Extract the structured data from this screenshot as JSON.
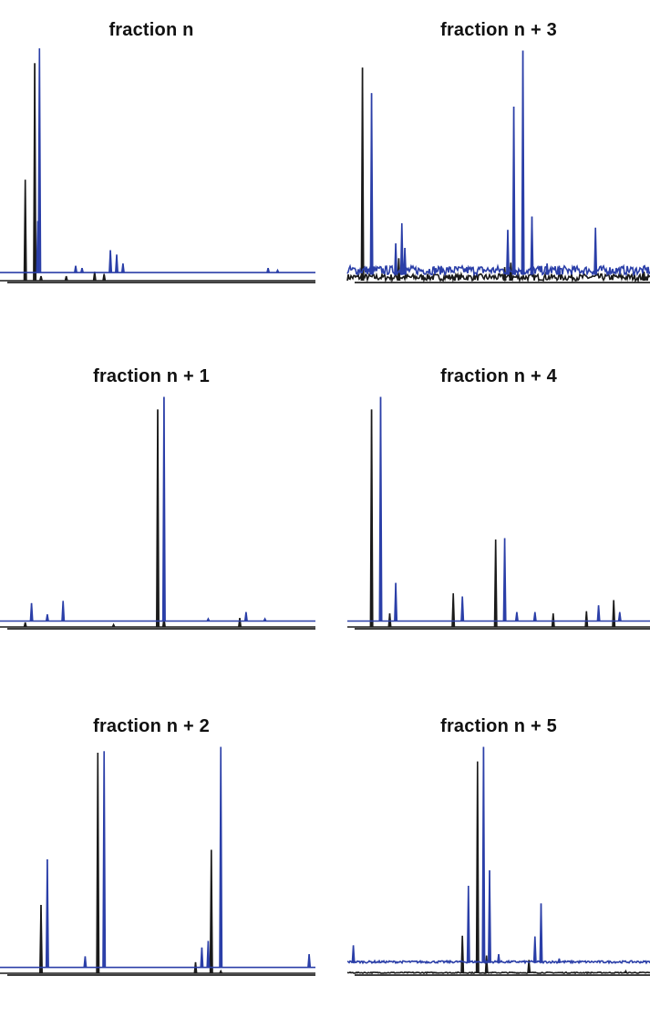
{
  "chart_data": [
    {
      "type": "line",
      "title": "fraction n",
      "series": [
        {
          "color": "#1a1a1a",
          "baseline": 0,
          "peaks": [
            [
              0.08,
              0.45
            ],
            [
              0.11,
              0.97
            ],
            [
              0.13,
              0.02
            ],
            [
              0.21,
              0.02
            ],
            [
              0.3,
              0.04
            ],
            [
              0.33,
              0.03
            ]
          ]
        },
        {
          "color": "#2b3fa8",
          "baseline": 0.02,
          "peaks": [
            [
              0.125,
              1.0
            ],
            [
              0.12,
              0.23
            ],
            [
              0.24,
              0.03
            ],
            [
              0.26,
              0.02
            ],
            [
              0.35,
              0.1
            ],
            [
              0.37,
              0.08
            ],
            [
              0.39,
              0.04
            ],
            [
              0.85,
              0.02
            ],
            [
              0.88,
              0.01
            ]
          ]
        }
      ]
    },
    {
      "type": "line",
      "title": "fraction n + 3",
      "series": [
        {
          "color": "#1a1a1a",
          "baseline": 0,
          "noise": 0.03,
          "peaks": [
            [
              0.05,
              0.95
            ],
            [
              0.17,
              0.1
            ],
            [
              0.52,
              0.06
            ],
            [
              0.54,
              0.08
            ],
            [
              0.98,
              0.04
            ]
          ]
        },
        {
          "color": "#2b3fa8",
          "baseline": 0.01,
          "noise": 0.04,
          "peaks": [
            [
              0.08,
              0.81
            ],
            [
              0.18,
              0.23
            ],
            [
              0.16,
              0.14
            ],
            [
              0.19,
              0.12
            ],
            [
              0.55,
              0.75
            ],
            [
              0.58,
              1.0
            ],
            [
              0.53,
              0.2
            ],
            [
              0.61,
              0.26
            ],
            [
              0.66,
              0.05
            ],
            [
              0.7,
              0.04
            ],
            [
              0.82,
              0.21
            ]
          ]
        }
      ]
    },
    {
      "type": "line",
      "title": "fraction n + 1",
      "series": [
        {
          "color": "#1a1a1a",
          "baseline": 0,
          "peaks": [
            [
              0.08,
              0.02
            ],
            [
              0.5,
              0.97
            ],
            [
              0.52,
              0.04
            ],
            [
              0.76,
              0.04
            ],
            [
              0.36,
              0.01
            ]
          ]
        },
        {
          "color": "#2b3fa8",
          "baseline": 0.01,
          "peaks": [
            [
              0.1,
              0.08
            ],
            [
              0.2,
              0.09
            ],
            [
              0.15,
              0.03
            ],
            [
              0.52,
              1.0
            ],
            [
              0.78,
              0.04
            ],
            [
              0.66,
              0.01
            ],
            [
              0.84,
              0.01
            ]
          ]
        }
      ]
    },
    {
      "type": "line",
      "title": "fraction n + 4",
      "series": [
        {
          "color": "#1a1a1a",
          "baseline": 0,
          "peaks": [
            [
              0.08,
              0.97
            ],
            [
              0.14,
              0.06
            ],
            [
              0.35,
              0.15
            ],
            [
              0.49,
              0.39
            ],
            [
              0.68,
              0.06
            ],
            [
              0.79,
              0.07
            ],
            [
              0.88,
              0.12
            ]
          ]
        },
        {
          "color": "#2b3fa8",
          "baseline": 0.01,
          "peaks": [
            [
              0.11,
              1.0
            ],
            [
              0.16,
              0.17
            ],
            [
              0.38,
              0.11
            ],
            [
              0.52,
              0.37
            ],
            [
              0.56,
              0.04
            ],
            [
              0.62,
              0.04
            ],
            [
              0.83,
              0.07
            ],
            [
              0.9,
              0.04
            ]
          ]
        }
      ]
    },
    {
      "type": "line",
      "title": "fraction n + 2",
      "series": [
        {
          "color": "#1a1a1a",
          "baseline": 0,
          "peaks": [
            [
              0.13,
              0.31
            ],
            [
              0.31,
              1.0
            ],
            [
              0.62,
              0.05
            ],
            [
              0.67,
              0.56
            ],
            [
              0.7,
              0.01
            ]
          ]
        },
        {
          "color": "#2b3fa8",
          "baseline": 0.01,
          "peaks": [
            [
              0.15,
              0.49
            ],
            [
              0.33,
              0.98
            ],
            [
              0.27,
              0.05
            ],
            [
              0.64,
              0.09
            ],
            [
              0.66,
              0.12
            ],
            [
              0.7,
              1.0
            ],
            [
              0.98,
              0.06
            ]
          ]
        }
      ]
    },
    {
      "type": "line",
      "title": "fraction n + 5",
      "series": [
        {
          "color": "#1a1a1a",
          "baseline": 0,
          "noise": 0.005,
          "peaks": [
            [
              0.38,
              0.17
            ],
            [
              0.43,
              0.96
            ],
            [
              0.46,
              0.08
            ],
            [
              0.6,
              0.06
            ],
            [
              0.92,
              0.01
            ]
          ]
        },
        {
          "color": "#2b3fa8",
          "baseline": 0.03,
          "noise": 0.01,
          "peaks": [
            [
              0.02,
              0.08
            ],
            [
              0.4,
              0.35
            ],
            [
              0.45,
              0.98
            ],
            [
              0.47,
              0.42
            ],
            [
              0.5,
              0.04
            ],
            [
              0.62,
              0.12
            ],
            [
              0.64,
              0.27
            ],
            [
              0.7,
              0.02
            ]
          ]
        }
      ]
    }
  ]
}
